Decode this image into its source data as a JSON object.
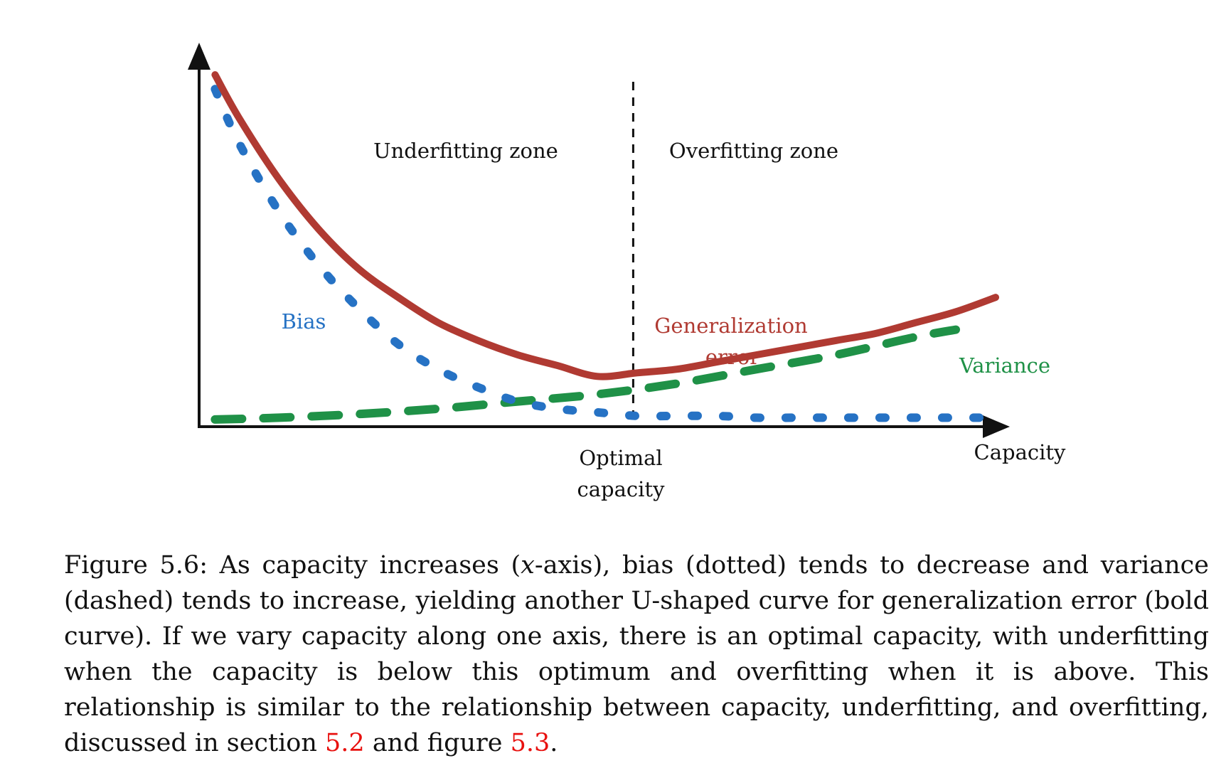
{
  "colors": {
    "generalization_error": "#b03a32",
    "bias": "#2672c4",
    "variance": "#1f9147",
    "axis": "#111111",
    "reference_link": "#e8110f"
  },
  "chart_data": {
    "type": "line",
    "xlabel": "Capacity",
    "ylabel": "",
    "x_range": [
      0,
      1
    ],
    "y_range": [
      0,
      1
    ],
    "ticks": "none",
    "grid": false,
    "legend": "inline labels",
    "series": [
      {
        "name": "Generalization error",
        "label_lines": [
          "Generalization",
          "error"
        ],
        "style": "bold solid",
        "color": "#b03a32",
        "x": [
          0.02,
          0.05,
          0.1,
          0.15,
          0.2,
          0.25,
          0.3,
          0.35,
          0.4,
          0.45,
          0.5,
          0.55,
          0.6,
          0.65,
          0.7,
          0.75,
          0.8,
          0.85,
          0.9,
          0.95,
          1.0
        ],
        "y": [
          0.98,
          0.86,
          0.69,
          0.55,
          0.44,
          0.36,
          0.29,
          0.24,
          0.2,
          0.17,
          0.14,
          0.15,
          0.16,
          0.18,
          0.2,
          0.22,
          0.24,
          0.26,
          0.29,
          0.32,
          0.36
        ]
      },
      {
        "name": "Bias",
        "label_lines": [
          "Bias"
        ],
        "style": "dotted",
        "color": "#2672c4",
        "x": [
          0.02,
          0.05,
          0.1,
          0.15,
          0.2,
          0.25,
          0.3,
          0.35,
          0.4,
          0.45,
          0.5,
          0.55,
          0.6,
          0.65,
          0.7,
          0.75,
          0.8,
          0.85,
          0.9,
          0.95,
          1.0
        ],
        "y": [
          0.94,
          0.79,
          0.6,
          0.45,
          0.33,
          0.23,
          0.16,
          0.11,
          0.07,
          0.05,
          0.04,
          0.03,
          0.03,
          0.03,
          0.025,
          0.025,
          0.025,
          0.025,
          0.025,
          0.025,
          0.025
        ]
      },
      {
        "name": "Variance",
        "label_lines": [
          "Variance"
        ],
        "style": "dashed",
        "color": "#1f9147",
        "x": [
          0.02,
          0.1,
          0.2,
          0.3,
          0.4,
          0.5,
          0.6,
          0.7,
          0.8,
          0.9,
          0.95
        ],
        "y": [
          0.02,
          0.025,
          0.035,
          0.05,
          0.07,
          0.09,
          0.12,
          0.16,
          0.2,
          0.25,
          0.27
        ]
      }
    ],
    "vertical_reference": {
      "x": 0.545,
      "style": "dashed",
      "label_lines": [
        "Optimal",
        "capacity"
      ]
    },
    "zones": {
      "left": "Underfitting zone",
      "right": "Overfitting zone"
    }
  },
  "caption": {
    "prefix": "Figure 5.6: As capacity increases (",
    "math_x": "x",
    "after_math": "-axis), bias (dotted) tends to decrease and variance (dashed) tends to increase, yielding another U-shaped curve for generalization error (bold curve). If we vary capacity along one axis, there is an optimal capacity, with underfitting when the capacity is below this optimum and overfitting when it is above. This relationship is similar to the relationship between capacity, underfitting, and overfitting, discussed in section ",
    "ref1": "5.2",
    "middle": " and figure ",
    "ref2": "5.3",
    "suffix": "."
  }
}
